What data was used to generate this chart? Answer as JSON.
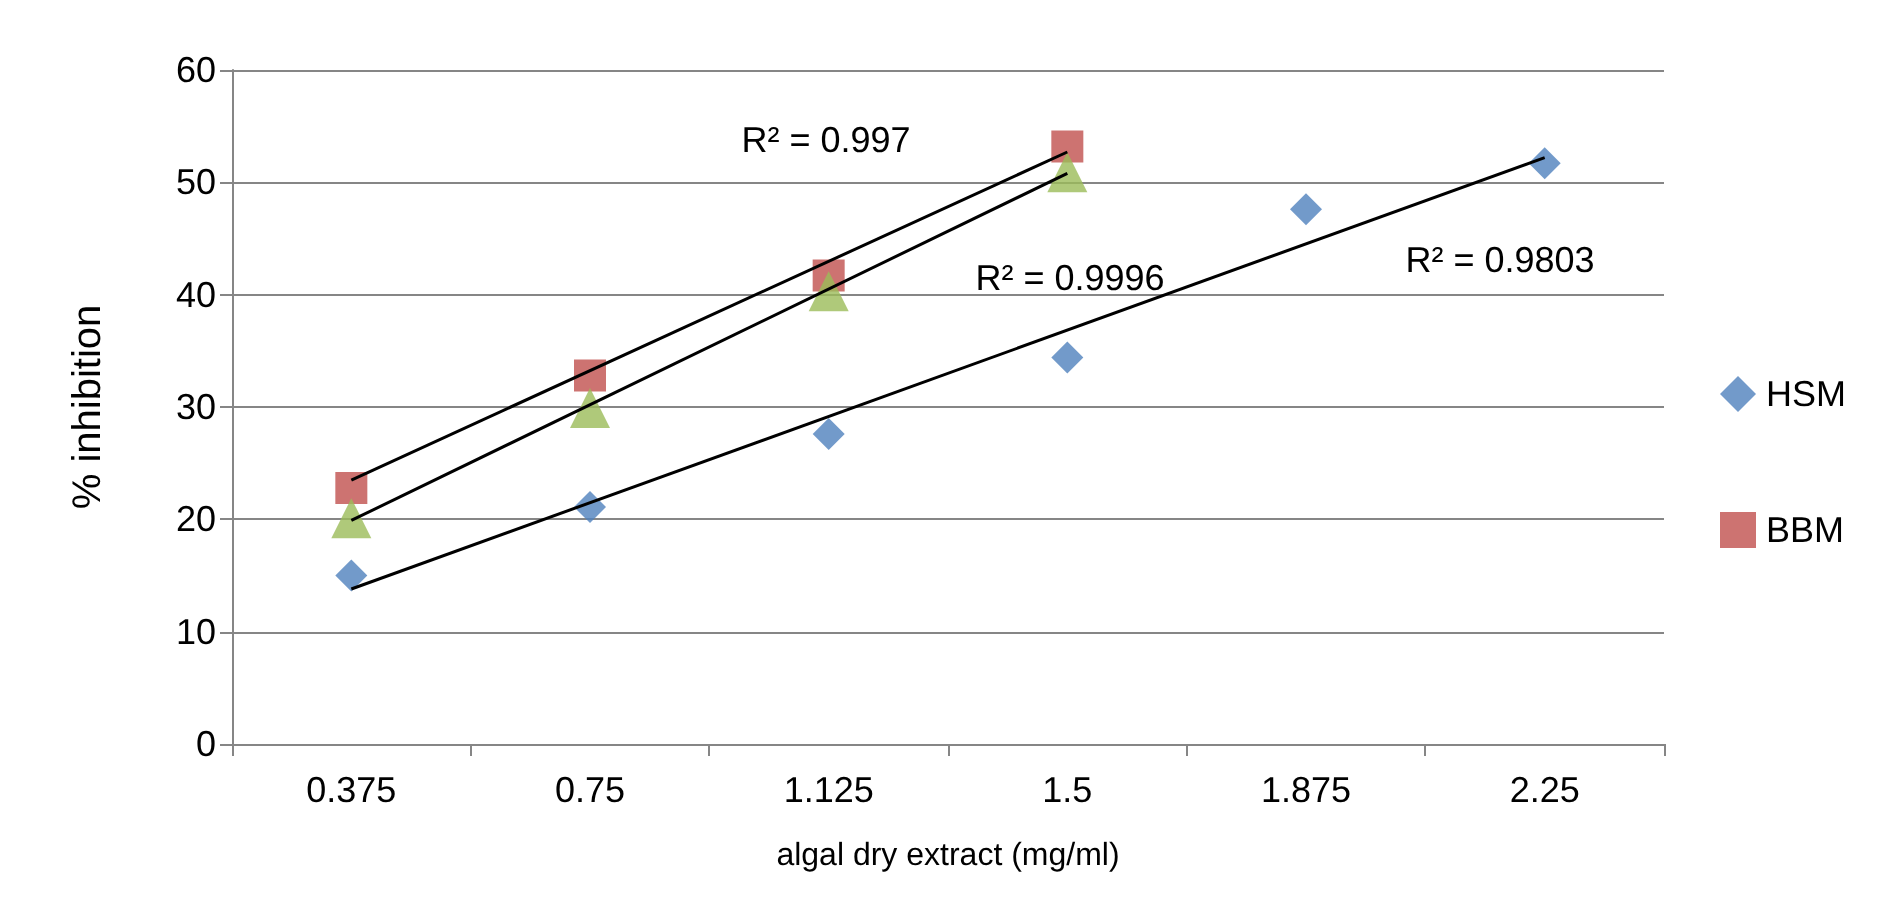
{
  "chart_data": {
    "type": "scatter",
    "xlabel": "algal dry extract (mg/ml)",
    "ylabel": "% inhibition",
    "categories": [
      "0.375",
      "0.75",
      "1.125",
      "1.5",
      "1.875",
      "2.25"
    ],
    "series": [
      {
        "name": "HSM",
        "color": "#4f81bd",
        "marker": "diamond",
        "values": [
          15.0,
          21.1,
          27.6,
          34.4,
          47.6,
          51.7
        ]
      },
      {
        "name": "BBM",
        "color": "#c0504d",
        "marker": "square",
        "x": [
          "0.375",
          "0.75",
          "1.125",
          "1.5"
        ],
        "values": [
          22.8,
          32.8,
          41.7,
          53.2
        ]
      },
      {
        "color": "#9bbb59",
        "marker": "triangle",
        "x": [
          "0.375",
          "0.75",
          "1.125",
          "1.5"
        ],
        "values": [
          20.1,
          29.9,
          40.3,
          50.9
        ]
      },
      {
        "type": "line",
        "color": "#000000",
        "marker": "none",
        "x": [
          "0.375",
          "2.25"
        ],
        "values": [
          13.8,
          52.2
        ]
      },
      {
        "type": "line",
        "color": "#000000",
        "marker": "none",
        "x": [
          "0.375",
          "1.5"
        ],
        "values": [
          23.5,
          52.7
        ]
      },
      {
        "type": "line",
        "color": "#000000",
        "marker": "none",
        "x": [
          "0.375",
          "1.5"
        ],
        "values": [
          19.9,
          50.8
        ]
      }
    ],
    "annotations": [
      "R² = 0.997",
      "R² = 0.9996",
      "R² = 0.9803"
    ],
    "ylim": [
      0,
      60
    ],
    "yticks": [
      0,
      10,
      20,
      30,
      40,
      50,
      60
    ],
    "grid": "y",
    "legend": "right"
  }
}
